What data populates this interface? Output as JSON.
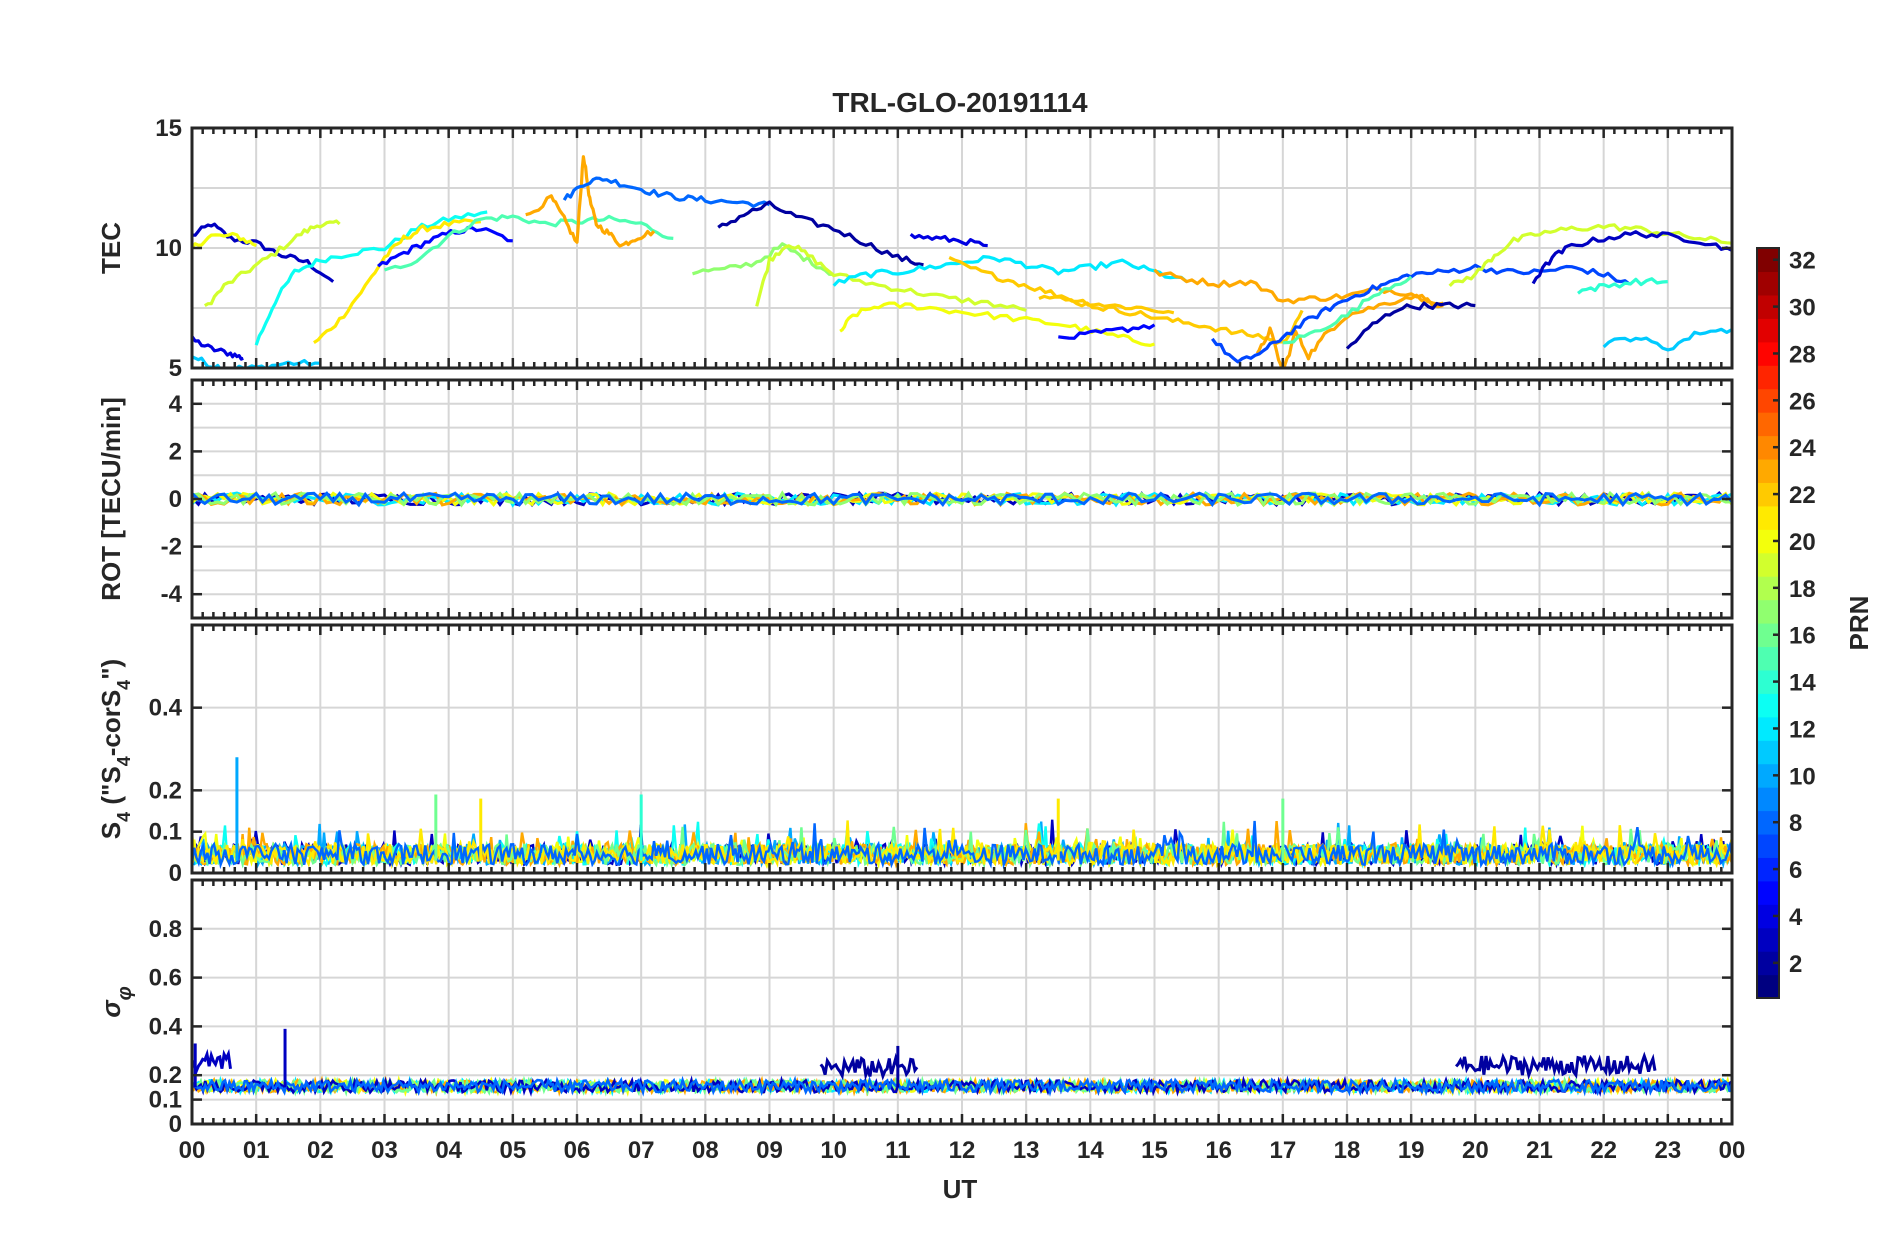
{
  "chart_data": {
    "type": "line",
    "title": "TRL-GLO-20191114",
    "xlabel": "UT",
    "x_ticks": [
      "00",
      "01",
      "02",
      "03",
      "04",
      "05",
      "06",
      "07",
      "08",
      "09",
      "10",
      "11",
      "12",
      "13",
      "14",
      "15",
      "16",
      "17",
      "18",
      "19",
      "20",
      "21",
      "22",
      "23",
      "00"
    ],
    "xlim": [
      0,
      24
    ],
    "grid": true,
    "colorbar": {
      "label": "PRN",
      "range": [
        1,
        32
      ],
      "ticks": [
        "2",
        "4",
        "6",
        "8",
        "10",
        "12",
        "14",
        "16",
        "18",
        "20",
        "22",
        "24",
        "26",
        "28",
        "30",
        "32"
      ],
      "colormap": "jet"
    },
    "panels": [
      {
        "id": "tec",
        "ylabel": "TEC",
        "ylim": [
          5,
          15
        ],
        "y_ticks": [
          "5",
          "10",
          "15"
        ],
        "series": [
          {
            "prn": 3,
            "x": [
              0.0,
              0.3,
              0.6,
              1.0,
              1.4,
              1.8,
              2.2
            ],
            "y": [
              10.5,
              11.0,
              10.4,
              10.2,
              9.7,
              9.4,
              8.6
            ]
          },
          {
            "prn": 4,
            "x": [
              0.0,
              0.3,
              0.6,
              0.8
            ],
            "y": [
              6.2,
              5.8,
              5.6,
              5.4
            ]
          },
          {
            "prn": 11,
            "x": [
              0.0,
              0.3,
              0.6,
              1.0,
              1.5,
              2.0
            ],
            "y": [
              5.5,
              5.1,
              5.0,
              5.0,
              5.2,
              5.2
            ]
          },
          {
            "prn": 19,
            "x": [
              0.2,
              0.5,
              0.9,
              1.3,
              1.7,
              2.0,
              2.3
            ],
            "y": [
              7.5,
              8.4,
              9.1,
              9.8,
              10.6,
              11.0,
              11.0
            ]
          },
          {
            "prn": 20,
            "x": [
              0.0,
              0.3,
              0.7,
              1.0
            ],
            "y": [
              10.0,
              10.5,
              10.5,
              10.1
            ]
          },
          {
            "prn": 13,
            "x": [
              1.0,
              1.3,
              1.6,
              2.0,
              2.5,
              3.0,
              3.5,
              4.0,
              4.6
            ],
            "y": [
              6.0,
              7.8,
              9.0,
              9.5,
              9.8,
              10.0,
              10.8,
              11.2,
              11.5
            ]
          },
          {
            "prn": 21,
            "x": [
              1.9,
              2.3,
              2.7,
              3.0,
              3.3,
              3.6,
              4.0,
              4.5
            ],
            "y": [
              6.0,
              7.0,
              8.4,
              9.6,
              10.4,
              10.8,
              11.0,
              11.1
            ]
          },
          {
            "prn": 5,
            "x": [
              2.9,
              3.3,
              3.7,
              4.1,
              4.5,
              5.0
            ],
            "y": [
              9.2,
              9.8,
              10.3,
              10.7,
              10.8,
              10.3
            ]
          },
          {
            "prn": 15,
            "x": [
              3.0,
              3.5,
              4.0,
              4.5,
              5.0,
              5.5,
              6.0,
              6.5,
              7.0,
              7.5
            ],
            "y": [
              9.0,
              9.5,
              10.5,
              11.2,
              11.3,
              11.0,
              11.1,
              11.2,
              11.0,
              10.4
            ]
          },
          {
            "prn": 23,
            "x": [
              5.2,
              5.6,
              5.8,
              6.0,
              6.1,
              6.2,
              6.3,
              6.5,
              6.7,
              6.9,
              7.2
            ],
            "y": [
              11.3,
              12.1,
              11.2,
              10.2,
              13.9,
              12.0,
              11.0,
              10.6,
              10.1,
              10.4,
              10.7
            ]
          },
          {
            "prn": 8,
            "x": [
              5.8,
              6.1,
              6.4,
              6.8,
              7.2,
              7.6,
              8.0,
              8.5,
              9.0
            ],
            "y": [
              12.0,
              12.7,
              12.9,
              12.6,
              12.3,
              12.1,
              12.0,
              11.9,
              11.8
            ]
          },
          {
            "prn": 2,
            "x": [
              8.2,
              8.6,
              9.0,
              9.5,
              10.0,
              10.5,
              11.0,
              11.4
            ],
            "y": [
              10.8,
              11.4,
              11.8,
              11.2,
              10.8,
              10.2,
              9.6,
              9.3
            ]
          },
          {
            "prn": 17,
            "x": [
              7.8,
              8.3,
              8.8,
              9.2,
              9.6,
              10.0
            ],
            "y": [
              9.0,
              9.1,
              9.4,
              10.1,
              9.5,
              8.9
            ]
          },
          {
            "prn": 19,
            "x": [
              8.8,
              9.0,
              9.3,
              9.6,
              10.0,
              10.6,
              11.2,
              11.8,
              12.4,
              13.0
            ],
            "y": [
              7.6,
              9.5,
              10.2,
              9.7,
              8.9,
              8.5,
              8.2,
              7.9,
              7.7,
              7.4
            ]
          },
          {
            "prn": 12,
            "x": [
              10.0,
              10.5,
              11.0,
              11.5,
              12.0,
              12.5,
              13.0,
              13.5,
              14.0,
              14.5,
              15.0,
              15.5
            ],
            "y": [
              8.5,
              8.9,
              9.0,
              9.2,
              9.4,
              9.6,
              9.3,
              9.0,
              9.2,
              9.4,
              9.0,
              8.6
            ]
          },
          {
            "prn": 20,
            "x": [
              10.1,
              10.3,
              10.7,
              11.2,
              11.8,
              12.4,
              13.0,
              13.6,
              14.1,
              14.6,
              15.0
            ],
            "y": [
              6.5,
              7.2,
              7.6,
              7.6,
              7.4,
              7.2,
              7.0,
              6.8,
              6.5,
              6.2,
              6.0
            ]
          },
          {
            "prn": 4,
            "x": [
              11.2,
              11.6,
              12.0,
              12.4
            ],
            "y": [
              10.5,
              10.4,
              10.3,
              10.1
            ]
          },
          {
            "prn": 22,
            "x": [
              11.8,
              12.3,
              12.8,
              13.3,
              13.8,
              14.3,
              14.8,
              15.3
            ],
            "y": [
              9.5,
              9.0,
              8.6,
              8.2,
              7.8,
              7.6,
              7.5,
              7.3
            ]
          },
          {
            "prn": 23,
            "x": [
              15.0,
              15.5,
              16.0,
              16.5,
              17.0,
              17.5,
              18.0,
              18.5,
              19.0,
              19.5
            ],
            "y": [
              9.0,
              8.7,
              8.5,
              8.6,
              7.8,
              7.9,
              8.0,
              8.3,
              8.1,
              7.7
            ]
          },
          {
            "prn": 22,
            "x": [
              13.2,
              13.7,
              14.2,
              14.7,
              15.2,
              15.7,
              16.2,
              16.7,
              17.0,
              17.3
            ],
            "y": [
              8.0,
              7.8,
              7.5,
              7.3,
              7.0,
              6.8,
              6.5,
              6.3,
              6.0,
              7.4
            ]
          },
          {
            "prn": 23,
            "x": [
              16.6,
              16.8,
              17.0,
              17.2,
              17.4,
              17.7,
              18.0,
              18.5,
              19.0,
              19.5
            ],
            "y": [
              5.5,
              6.6,
              4.8,
              6.5,
              5.5,
              6.5,
              7.2,
              7.6,
              8.0,
              7.6
            ]
          },
          {
            "prn": 5,
            "x": [
              13.5,
              14.0,
              14.5,
              15.0
            ],
            "y": [
              6.2,
              6.4,
              6.6,
              6.8
            ]
          },
          {
            "prn": 7,
            "x": [
              15.9,
              16.3,
              16.7,
              17.0,
              17.4,
              17.8,
              18.2,
              18.6,
              19.0,
              19.5,
              20.0,
              20.5,
              21.0,
              21.5,
              22.0,
              22.4
            ],
            "y": [
              6.2,
              5.2,
              5.7,
              6.3,
              7.0,
              7.6,
              8.1,
              8.5,
              8.9,
              9.0,
              9.2,
              9.0,
              9.0,
              9.2,
              8.9,
              8.5
            ]
          },
          {
            "prn": 2,
            "x": [
              18.0,
              18.4,
              18.8,
              19.2,
              19.6,
              20.0
            ],
            "y": [
              5.8,
              6.8,
              7.5,
              7.6,
              7.6,
              7.6
            ]
          },
          {
            "prn": 15,
            "x": [
              17.0,
              17.5,
              18.0,
              18.5,
              19.0
            ],
            "y": [
              6.0,
              6.5,
              7.2,
              8.2,
              8.8
            ]
          },
          {
            "prn": 19,
            "x": [
              19.6,
              20.0,
              20.3,
              20.6,
              21.0,
              21.5,
              22.0,
              22.5,
              23.0,
              23.5,
              24.0
            ],
            "y": [
              8.4,
              8.9,
              9.7,
              10.3,
              10.6,
              10.8,
              10.9,
              10.8,
              10.6,
              10.4,
              10.2
            ]
          },
          {
            "prn": 3,
            "x": [
              20.9,
              21.2,
              21.5,
              22.0,
              22.5,
              23.0,
              23.5,
              24.0
            ],
            "y": [
              8.6,
              9.6,
              10.1,
              10.4,
              10.6,
              10.5,
              10.3,
              9.9
            ]
          },
          {
            "prn": 11,
            "x": [
              22.0,
              22.5,
              23.0,
              23.5,
              24.0
            ],
            "y": [
              6.0,
              6.3,
              5.8,
              6.5,
              6.6
            ]
          },
          {
            "prn": 14,
            "x": [
              21.6,
              22.0,
              22.5,
              23.0
            ],
            "y": [
              8.2,
              8.4,
              8.6,
              8.6
            ]
          }
        ]
      },
      {
        "id": "rot",
        "ylabel": "ROT [TECU/min]",
        "ylim": [
          -5,
          5
        ],
        "y_ticks": [
          "-4",
          "-2",
          "0",
          "2",
          "4"
        ],
        "description_level": 0.0,
        "noise_amplitude": 0.25
      },
      {
        "id": "s4",
        "ylabel": "S4 (\"S4-corS4\")",
        "ylim": [
          0,
          0.6
        ],
        "y_ticks": [
          "0",
          "0.1",
          "0.2",
          "0.4"
        ],
        "peaks": [
          {
            "x": 0.7,
            "y": 0.28,
            "prn": 10
          },
          {
            "x": 3.8,
            "y": 0.19,
            "prn": 16
          },
          {
            "x": 4.5,
            "y": 0.18,
            "prn": 21
          },
          {
            "x": 7.0,
            "y": 0.19,
            "prn": 14
          },
          {
            "x": 13.5,
            "y": 0.18,
            "prn": 21
          },
          {
            "x": 17.0,
            "y": 0.18,
            "prn": 16
          }
        ]
      },
      {
        "id": "sigma-phi",
        "ylabel": "σφ",
        "ylim": [
          0,
          1
        ],
        "y_ticks": [
          "0",
          "0.1",
          "0.2",
          "0.4",
          "0.6",
          "0.8"
        ],
        "peaks": [
          {
            "x": 1.45,
            "y": 0.39,
            "prn": 3
          },
          {
            "x": 0.05,
            "y": 0.33,
            "prn": 3
          },
          {
            "x": 11.0,
            "y": 0.32,
            "prn": 2
          }
        ],
        "elevated_segments": [
          {
            "x0": 0.0,
            "x1": 0.6,
            "level": 0.25,
            "prn": 3
          },
          {
            "x0": 9.8,
            "x1": 11.3,
            "level": 0.23,
            "prn": 2
          },
          {
            "x0": 19.7,
            "x1": 22.8,
            "level": 0.24,
            "prn": 2
          }
        ]
      }
    ]
  }
}
